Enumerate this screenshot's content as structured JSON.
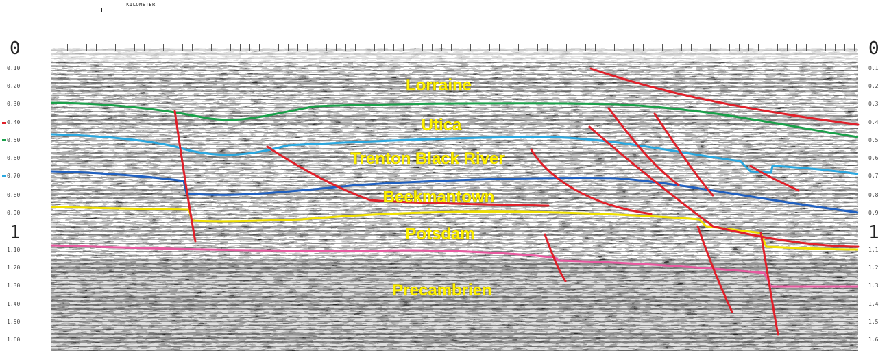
{
  "scale_bar": {
    "label": "KILOMETER"
  },
  "axis_left": {
    "big_labels": [
      "0",
      "1"
    ],
    "small_labels": [
      "0.10",
      "0.20",
      "0.30",
      "0.40",
      "0.50",
      "0.60",
      "0.70",
      "0.80",
      "0.90",
      "1.10",
      "1.20",
      "1.30",
      "1.40",
      "1.50",
      "1.60"
    ]
  },
  "axis_right": {
    "big_labels": [
      "0",
      "1"
    ],
    "small_labels": [
      "0.1",
      "0.2",
      "0.3",
      "0.4",
      "0.5",
      "0.6",
      "0.7",
      "0.8",
      "0.9",
      "1.1",
      "1.2",
      "1.3",
      "1.4",
      "1.5",
      "1.6"
    ]
  },
  "formations": [
    {
      "name": "Lorraine"
    },
    {
      "name": "Utica"
    },
    {
      "name": "Trenton Black River"
    },
    {
      "name": "Beekmantown"
    },
    {
      "name": "Potsdam"
    },
    {
      "name": "Precambrien"
    }
  ],
  "colors": {
    "formation_text": "#fff200",
    "fault": "#e0202a",
    "horizon_utica_top": "#1aa04a",
    "horizon_trenton_top": "#2aa8e0",
    "horizon_beekmantown_top": "#2060c0",
    "horizon_potsdam_top": "#f0e000",
    "horizon_precambrian_top": "#e85aa0"
  }
}
